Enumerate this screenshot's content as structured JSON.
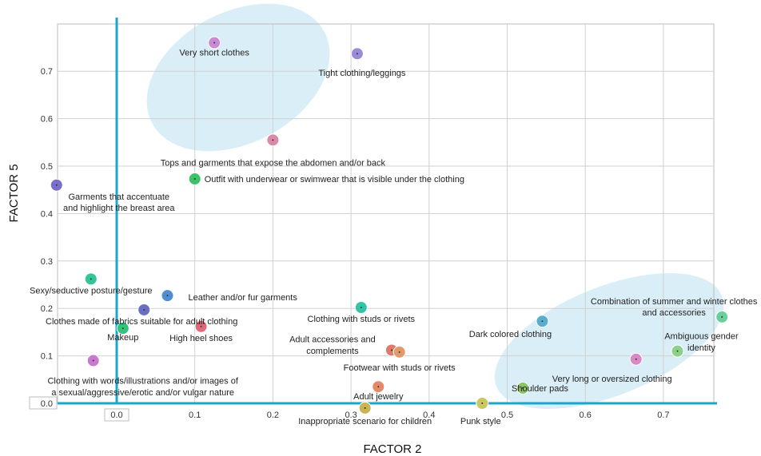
{
  "chart_data": {
    "type": "scatter",
    "title": "",
    "xlabel": "FACTOR 2",
    "ylabel": "FACTOR 5",
    "xlim": [
      -0.08,
      0.78
    ],
    "ylim": [
      -0.01,
      0.76
    ],
    "xticks": [
      "0.0",
      "0.1",
      "0.2",
      "0.3",
      "0.4",
      "0.5",
      "0.6",
      "0.7"
    ],
    "yticks": [
      "0.0",
      "0.1",
      "0.2",
      "0.3",
      "0.4",
      "0.5",
      "0.6",
      "0.7"
    ],
    "grid": true,
    "points": [
      {
        "label": "Very short clothes",
        "x": 0.125,
        "y": 0.76,
        "color": "#c98ad6"
      },
      {
        "label": "Tight clothing/leggings",
        "x": 0.308,
        "y": 0.737,
        "color": "#9d8ad6"
      },
      {
        "label": "Tops and garments that expose the abdomen and/or back",
        "x": 0.2,
        "y": 0.555,
        "color": "#d98aa8"
      },
      {
        "label": "Outfit with underwear or swimwear that is visible under the clothing",
        "x": 0.1,
        "y": 0.473,
        "color": "#3cc36a"
      },
      {
        "label": "Garments that accentuate and highlight the breast area",
        "x": -0.077,
        "y": 0.46,
        "color": "#7a6fc8"
      },
      {
        "label": "Sexy/seductive posture/gesture",
        "x": -0.033,
        "y": 0.262,
        "color": "#33c49a"
      },
      {
        "label": "Leather and/or fur garments",
        "x": 0.065,
        "y": 0.227,
        "color": "#4f8fd0"
      },
      {
        "label": "Clothes made of fabrics suitable for adult clothing",
        "x": 0.035,
        "y": 0.197,
        "color": "#6a6fc4"
      },
      {
        "label": "Makeup",
        "x": 0.008,
        "y": 0.158,
        "color": "#33c47a"
      },
      {
        "label": "High heel shoes",
        "x": 0.108,
        "y": 0.162,
        "color": "#e06a7a"
      },
      {
        "label": "Clothing with words/illustrations and/or images of a sexual/aggressive/erotic and/or vulgar nature",
        "x": -0.03,
        "y": 0.09,
        "color": "#c97ad0"
      },
      {
        "label": "Clothing with studs or rivets",
        "x": 0.313,
        "y": 0.202,
        "color": "#33c4a8"
      },
      {
        "label": "Adult accessories and complements",
        "x": 0.352,
        "y": 0.112,
        "color": "#e07a6a"
      },
      {
        "label": "Footwear with studs or rivets",
        "x": 0.362,
        "y": 0.108,
        "color": "#e39a6a"
      },
      {
        "label": "Adult jewelry",
        "x": 0.335,
        "y": 0.035,
        "color": "#e48a68"
      },
      {
        "label": "Inappropriate scenario for children",
        "x": 0.318,
        "y": -0.01,
        "color": "#c9b456"
      },
      {
        "label": "Punk style",
        "x": 0.468,
        "y": 0.0,
        "color": "#c9c960"
      },
      {
        "label": "Shoulder pads",
        "x": 0.52,
        "y": 0.032,
        "color": "#8cc46a"
      },
      {
        "label": "Dark colored clothing",
        "x": 0.545,
        "y": 0.173,
        "color": "#5aaecc"
      },
      {
        "label": "Combination of summer and winter clothes and accessories",
        "x": 0.775,
        "y": 0.182,
        "color": "#6ad09a"
      },
      {
        "label": "Ambiguous gender identity",
        "x": 0.718,
        "y": 0.11,
        "color": "#8cd08a"
      },
      {
        "label": "Very long or oversized clothing",
        "x": 0.665,
        "y": 0.093,
        "color": "#d98ac4"
      }
    ]
  }
}
